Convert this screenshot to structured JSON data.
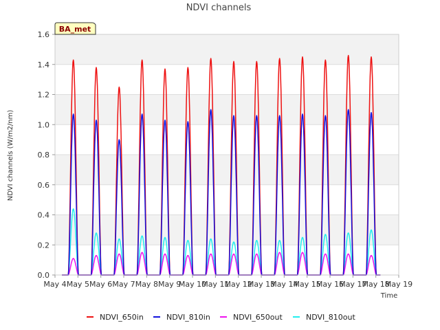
{
  "chart_data": {
    "type": "line",
    "title": "NDVI channels",
    "xlabel": "Time",
    "ylabel": "NDVI channels (W/m2/nm)",
    "badge": "BA_met",
    "xlim": [
      4,
      19
    ],
    "ylim": [
      0,
      1.6
    ],
    "x_ticks": [
      {
        "value": 4,
        "label": "May 4"
      },
      {
        "value": 5,
        "label": "May 5"
      },
      {
        "value": 6,
        "label": "May 6"
      },
      {
        "value": 7,
        "label": "May 7"
      },
      {
        "value": 8,
        "label": "May 8"
      },
      {
        "value": 9,
        "label": "May 9"
      },
      {
        "value": 10,
        "label": "May 10"
      },
      {
        "value": 11,
        "label": "May 11"
      },
      {
        "value": 12,
        "label": "May 12"
      },
      {
        "value": 13,
        "label": "May 13"
      },
      {
        "value": 14,
        "label": "May 14"
      },
      {
        "value": 15,
        "label": "May 15"
      },
      {
        "value": 16,
        "label": "May 16"
      },
      {
        "value": 17,
        "label": "May 17"
      },
      {
        "value": 18,
        "label": "May 18"
      },
      {
        "value": 19,
        "label": "May 19"
      }
    ],
    "y_ticks": [
      {
        "value": 0.0,
        "label": "0.0"
      },
      {
        "value": 0.2,
        "label": "0.2"
      },
      {
        "value": 0.4,
        "label": "0.4"
      },
      {
        "value": 0.6,
        "label": "0.6"
      },
      {
        "value": 0.8,
        "label": "0.8"
      },
      {
        "value": 1.0,
        "label": "1.0"
      },
      {
        "value": 1.2,
        "label": "1.2"
      },
      {
        "value": 1.4,
        "label": "1.4"
      },
      {
        "value": 1.6,
        "label": "1.6"
      }
    ],
    "days": [
      4.8,
      5.8,
      6.8,
      7.8,
      8.8,
      9.8,
      10.8,
      11.8,
      12.8,
      13.8,
      14.8,
      15.8,
      16.8,
      17.8
    ],
    "day_width": 0.22,
    "series": [
      {
        "name": "NDVI_650in",
        "color": "#ee1111",
        "peaks": [
          1.43,
          1.38,
          1.25,
          1.43,
          1.37,
          1.38,
          1.44,
          1.42,
          1.42,
          1.44,
          1.45,
          1.43,
          1.46,
          1.45
        ]
      },
      {
        "name": "NDVI_810in",
        "color": "#1111dd",
        "peaks": [
          1.07,
          1.03,
          0.9,
          1.07,
          1.03,
          1.02,
          1.1,
          1.06,
          1.06,
          1.06,
          1.07,
          1.06,
          1.1,
          1.08
        ]
      },
      {
        "name": "NDVI_650out",
        "color": "#ee11ee",
        "peaks": [
          0.11,
          0.13,
          0.14,
          0.15,
          0.14,
          0.13,
          0.14,
          0.14,
          0.14,
          0.15,
          0.15,
          0.14,
          0.14,
          0.13
        ]
      },
      {
        "name": "NDVI_810out",
        "color": "#22eeee",
        "peaks": [
          0.44,
          0.28,
          0.24,
          0.26,
          0.25,
          0.23,
          0.24,
          0.22,
          0.23,
          0.23,
          0.25,
          0.27,
          0.28,
          0.3
        ]
      }
    ]
  }
}
